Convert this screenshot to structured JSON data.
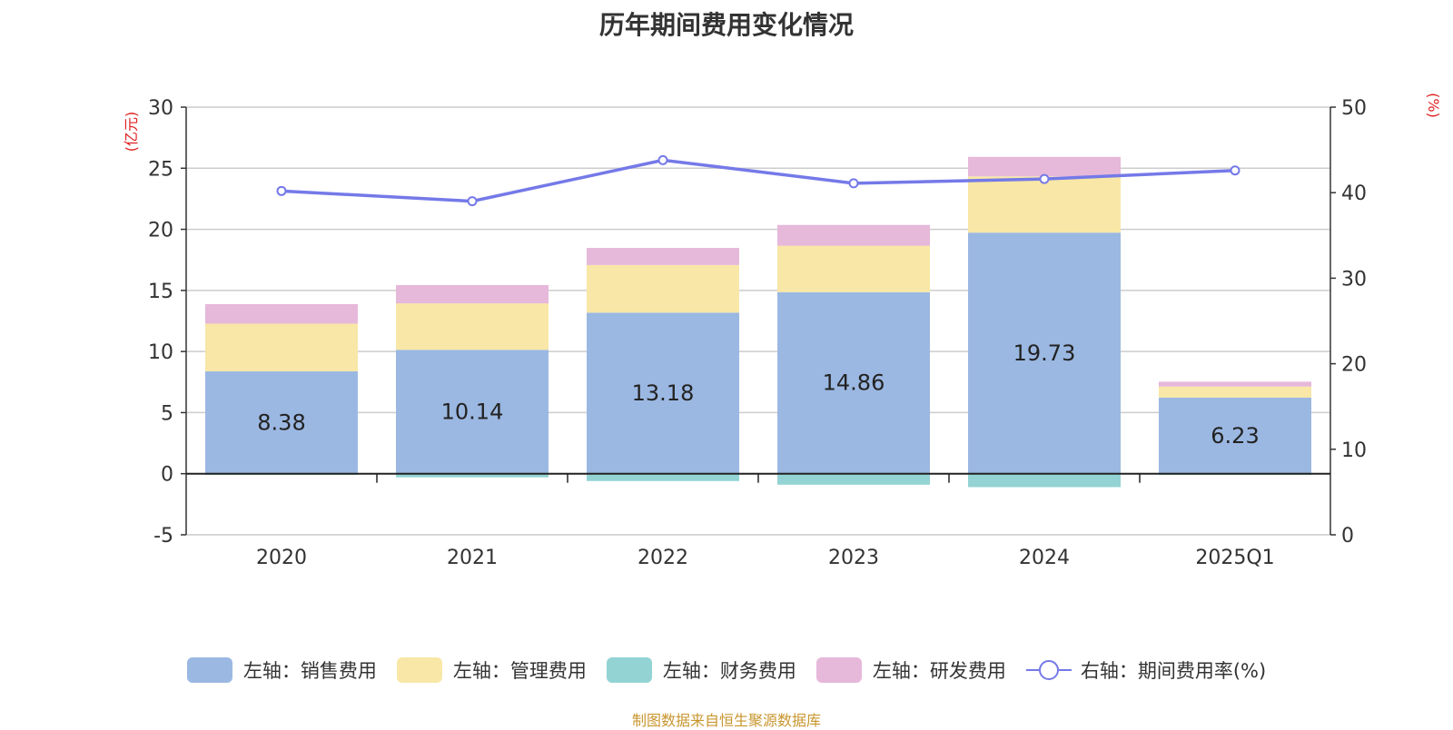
{
  "title": "历年期间费用变化情况",
  "source_note": "制图数据来自恒生聚源数据库",
  "chart_data": {
    "type": "bar",
    "stacked": true,
    "categories": [
      "2020",
      "2021",
      "2022",
      "2023",
      "2024",
      "2025Q1"
    ],
    "left_axis": {
      "label": "(亿元)",
      "range": [
        -5,
        30
      ],
      "ticks": [
        -5,
        0,
        5,
        10,
        15,
        20,
        25,
        30
      ]
    },
    "right_axis": {
      "label": "(%)",
      "range": [
        0,
        50
      ],
      "ticks": [
        0,
        10,
        20,
        30,
        40,
        50
      ]
    },
    "grid": true,
    "legend_position": "bottom",
    "series": [
      {
        "name": "左轴：销售费用",
        "type": "bar",
        "axis": "left",
        "color": "#9bb8e2",
        "values": [
          8.38,
          10.14,
          13.18,
          14.86,
          19.73,
          6.23
        ],
        "labels_shown": true
      },
      {
        "name": "左轴：管理费用",
        "type": "bar",
        "axis": "left",
        "color": "#f8e7a6",
        "values": [
          3.9,
          3.8,
          3.9,
          3.8,
          4.6,
          0.9
        ]
      },
      {
        "name": "左轴：财务费用",
        "type": "bar",
        "axis": "left",
        "color": "#94d3d4",
        "values": [
          -0.1,
          -0.3,
          -0.6,
          -0.9,
          -1.1,
          -0.1
        ]
      },
      {
        "name": "左轴：研发费用",
        "type": "bar",
        "axis": "left",
        "color": "#e6b8da",
        "values": [
          1.6,
          1.5,
          1.4,
          1.7,
          1.6,
          0.4
        ]
      },
      {
        "name": "右轴：期间费用率(%)",
        "type": "line",
        "axis": "right",
        "color": "#7479e8",
        "values": [
          40.2,
          39.0,
          43.8,
          41.1,
          41.6,
          42.6
        ]
      }
    ]
  }
}
